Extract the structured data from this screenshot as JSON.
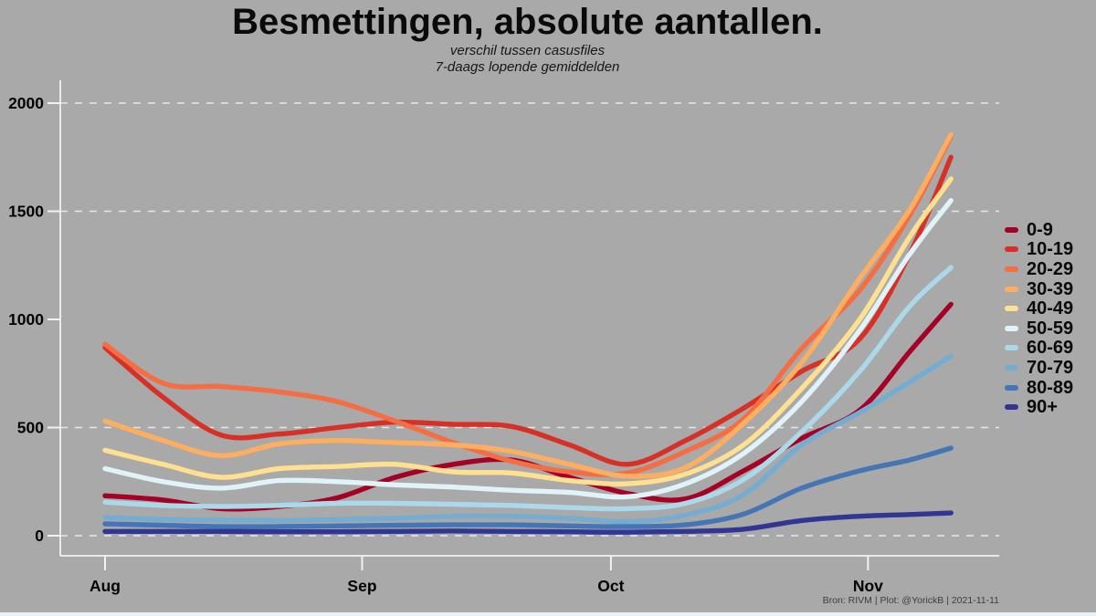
{
  "title": "Besmettingen, absolute aantallen.",
  "subtitle_line1": "verschil tussen casusfiles",
  "subtitle_line2": "7-daags lopende gemiddelden",
  "footer": "Bron: RIVM | Plot: @YorickB  |  2021-11-11",
  "colors": {
    "background": "#a9a9a9",
    "axis": "#f2f2f2",
    "grid": "#f2f2f2",
    "tick_text": "#000000",
    "footer_text": "#3d3d3d",
    "bottom_strip": "#e7f2f6"
  },
  "chart_data": {
    "type": "line",
    "title": "Besmettingen, absolute aantallen.",
    "subtitle": "verschil tussen casusfiles / 7-daags lopende gemiddelden",
    "xlabel": "",
    "ylabel": "",
    "ylim": [
      0,
      2000
    ],
    "yticks": [
      0,
      500,
      1000,
      1500,
      2000
    ],
    "gridline_values": [
      0,
      500,
      1500,
      2000
    ],
    "grid_style": "dashed-white",
    "legend_position": "right",
    "x_note": "day offset from Aug 1, 2021; data runs Aug 1 - Nov 11",
    "x_days": [
      0,
      7,
      14,
      21,
      28,
      35,
      42,
      49,
      56,
      63,
      70,
      77,
      84,
      91,
      97,
      102
    ],
    "xticks": [
      {
        "label": "Aug",
        "day": 0
      },
      {
        "label": "Sep",
        "day": 31
      },
      {
        "label": "Oct",
        "day": 61
      },
      {
        "label": "Nov",
        "day": 92
      }
    ],
    "series": [
      {
        "name": "0-9",
        "color": "#a50026",
        "values": [
          185,
          165,
          125,
          135,
          175,
          270,
          330,
          350,
          270,
          195,
          170,
          300,
          450,
          580,
          850,
          1070
        ]
      },
      {
        "name": "10-19",
        "color": "#d73027",
        "values": [
          870,
          640,
          465,
          470,
          500,
          525,
          515,
          505,
          420,
          330,
          440,
          590,
          760,
          910,
          1300,
          1750
        ]
      },
      {
        "name": "20-29",
        "color": "#f46d43",
        "values": [
          885,
          705,
          690,
          665,
          620,
          530,
          430,
          345,
          295,
          290,
          390,
          540,
          865,
          1135,
          1480,
          1845
        ]
      },
      {
        "name": "30-39",
        "color": "#fdae61",
        "values": [
          530,
          440,
          370,
          425,
          440,
          430,
          420,
          390,
          330,
          275,
          315,
          520,
          800,
          1190,
          1505,
          1855
        ]
      },
      {
        "name": "40-49",
        "color": "#fee090",
        "values": [
          395,
          330,
          270,
          310,
          320,
          330,
          295,
          290,
          255,
          240,
          285,
          420,
          680,
          1000,
          1380,
          1650
        ]
      },
      {
        "name": "50-59",
        "color": "#e0f3f8",
        "values": [
          310,
          250,
          220,
          255,
          250,
          235,
          225,
          210,
          200,
          180,
          240,
          380,
          620,
          950,
          1300,
          1550
        ]
      },
      {
        "name": "60-69",
        "color": "#abd9e9",
        "values": [
          155,
          140,
          135,
          140,
          150,
          150,
          145,
          140,
          130,
          125,
          150,
          260,
          480,
          760,
          1060,
          1240
        ]
      },
      {
        "name": "70-79",
        "color": "#74add1",
        "values": [
          85,
          75,
          72,
          70,
          75,
          80,
          90,
          90,
          80,
          65,
          95,
          190,
          420,
          570,
          710,
          830
        ]
      },
      {
        "name": "80-89",
        "color": "#4575b4",
        "values": [
          55,
          48,
          42,
          42,
          45,
          48,
          50,
          50,
          45,
          42,
          50,
          100,
          220,
          300,
          350,
          405
        ]
      },
      {
        "name": "90+",
        "color": "#313695",
        "values": [
          20,
          20,
          20,
          18,
          18,
          20,
          22,
          20,
          18,
          16,
          20,
          30,
          70,
          90,
          98,
          105
        ]
      }
    ]
  }
}
